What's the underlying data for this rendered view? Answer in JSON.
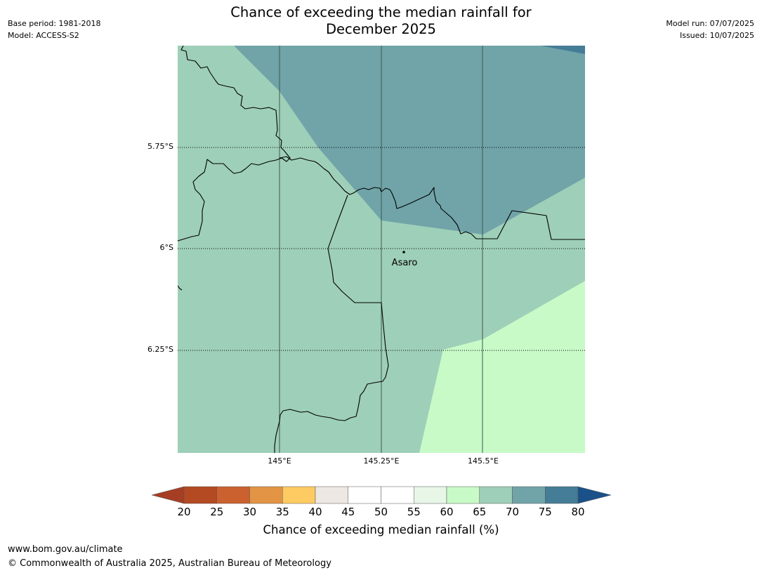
{
  "title": {
    "line1": "Chance of exceeding the median rainfall for",
    "line2": "December 2025"
  },
  "meta_left": {
    "base_period": "Base period: 1981-2018",
    "model": "Model: ACCESS-S2"
  },
  "meta_right": {
    "model_run": "Model run: 07/07/2025",
    "issued": "Issued: 10/07/2025"
  },
  "map": {
    "place_label": "Asaro",
    "lat_labels": [
      "5.75°S",
      "6°S",
      "6.25°S"
    ],
    "lon_labels": [
      "145°E",
      "145.25°E",
      "145.5°E"
    ],
    "fill_colors": {
      "band_65_70": "#9ecfb8",
      "band_70_75": "#70a4a8",
      "band_75_80": "#457c96",
      "band_60_65": "#c8fac8"
    }
  },
  "colorbar": {
    "label": "Chance of exceeding median rainfall (%)",
    "ticks": [
      "20",
      "25",
      "30",
      "35",
      "40",
      "45",
      "50",
      "55",
      "60",
      "65",
      "70",
      "75",
      "80"
    ],
    "colors": [
      "#a63e23",
      "#b34a22",
      "#cc6130",
      "#e29444",
      "#fecb63",
      "#ede8e3",
      "#ffffff",
      "#ffffff",
      "#e8f6e8",
      "#c8fac8",
      "#9ecfb8",
      "#70a4a8",
      "#457c96",
      "#1a5188"
    ]
  },
  "footer": {
    "url": "www.bom.gov.au/climate",
    "copyright": "© Commonwealth of Australia 2025, Australian Bureau of Meteorology"
  }
}
